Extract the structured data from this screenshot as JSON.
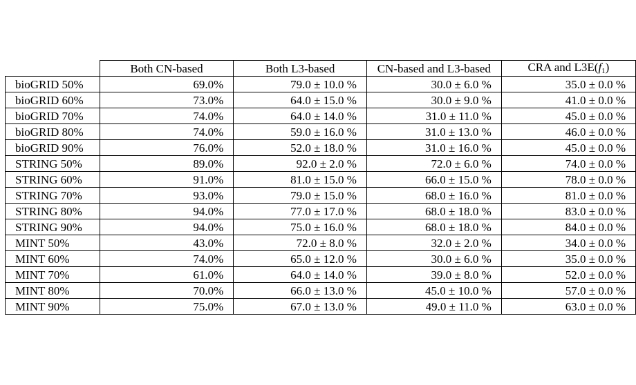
{
  "table": {
    "columns": [
      "Both CN-based",
      "Both L3-based",
      "CN-based and L3-based",
      "CRA and L3E(f1)"
    ],
    "rows": [
      {
        "label": "bioGRID 50%",
        "values": [
          "69.0%",
          "79.0 ± 10.0 %",
          "30.0 ± 6.0 %",
          "35.0 ± 0.0 %"
        ]
      },
      {
        "label": "bioGRID 60%",
        "values": [
          "73.0%",
          "64.0 ± 15.0 %",
          "30.0 ± 9.0 %",
          "41.0 ± 0.0 %"
        ]
      },
      {
        "label": "bioGRID 70%",
        "values": [
          "74.0%",
          "64.0 ± 14.0 %",
          "31.0 ± 11.0 %",
          "45.0 ± 0.0 %"
        ]
      },
      {
        "label": "bioGRID 80%",
        "values": [
          "74.0%",
          "59.0 ± 16.0 %",
          "31.0 ± 13.0 %",
          "46.0 ± 0.0 %"
        ]
      },
      {
        "label": "bioGRID 90%",
        "values": [
          "76.0%",
          "52.0 ± 18.0 %",
          "31.0 ± 16.0 %",
          "45.0 ± 0.0 %"
        ]
      },
      {
        "label": "STRING 50%",
        "values": [
          "89.0%",
          "92.0 ± 2.0 %",
          "72.0 ± 6.0 %",
          "74.0 ± 0.0 %"
        ]
      },
      {
        "label": "STRING 60%",
        "values": [
          "91.0%",
          "81.0 ± 15.0 %",
          "66.0 ± 15.0 %",
          "78.0 ± 0.0 %"
        ]
      },
      {
        "label": "STRING 70%",
        "values": [
          "93.0%",
          "79.0 ± 15.0 %",
          "68.0 ± 16.0 %",
          "81.0 ± 0.0 %"
        ]
      },
      {
        "label": "STRING 80%",
        "values": [
          "94.0%",
          "77.0 ± 17.0 %",
          "68.0 ± 18.0 %",
          "83.0 ± 0.0 %"
        ]
      },
      {
        "label": "STRING 90%",
        "values": [
          "94.0%",
          "75.0 ± 16.0 %",
          "68.0 ± 18.0 %",
          "84.0 ± 0.0 %"
        ]
      },
      {
        "label": "MINT 50%",
        "values": [
          "43.0%",
          "72.0 ± 8.0 %",
          "32.0 ± 2.0 %",
          "34.0 ± 0.0 %"
        ]
      },
      {
        "label": "MINT 60%",
        "values": [
          "74.0%",
          "65.0 ± 12.0 %",
          "30.0 ± 6.0 %",
          "35.0 ± 0.0 %"
        ]
      },
      {
        "label": "MINT 70%",
        "values": [
          "61.0%",
          "64.0 ± 14.0 %",
          "39.0 ± 8.0 %",
          "52.0 ± 0.0 %"
        ]
      },
      {
        "label": "MINT 80%",
        "values": [
          "70.0%",
          "66.0 ± 13.0 %",
          "45.0 ± 10.0 %",
          "57.0 ± 0.0 %"
        ]
      },
      {
        "label": "MINT 90%",
        "values": [
          "75.0%",
          "67.0 ± 13.0 %",
          "49.0 ± 11.0 %",
          "63.0 ± 0.0 %"
        ]
      }
    ]
  }
}
